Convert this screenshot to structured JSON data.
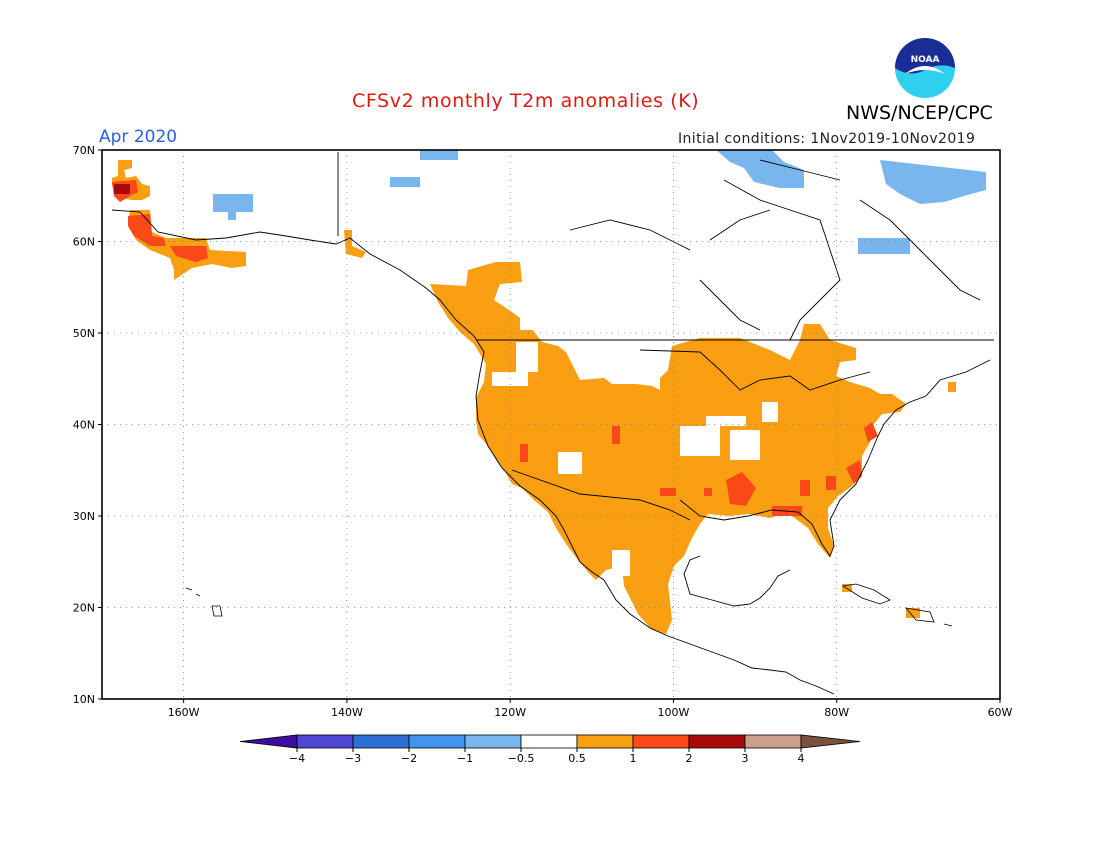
{
  "header": {
    "title": "CFSv2 monthly T2m anomalies (K)",
    "agency": "NWS/NCEP/CPC",
    "logo_text": "NOAA",
    "month": "Apr 2020",
    "initial_conditions": "Initial conditions: 1Nov2019-10Nov2019"
  },
  "axes": {
    "lat_labels": [
      "70N",
      "60N",
      "50N",
      "40N",
      "30N",
      "20N",
      "10N"
    ],
    "lon_labels": [
      "160W",
      "140W",
      "120W",
      "100W",
      "80W",
      "60W"
    ],
    "lat_values": [
      70,
      60,
      50,
      40,
      30,
      20,
      10
    ],
    "lon_values": [
      -160,
      -140,
      -120,
      -100,
      -80,
      -60
    ],
    "lat_range": [
      10,
      70
    ],
    "lon_range": [
      -170,
      -60
    ],
    "grid": "dotted"
  },
  "colorbar": {
    "labels": [
      "-4",
      "-3",
      "-2",
      "-1",
      "-0.5",
      "0.5",
      "1",
      "2",
      "3",
      "4"
    ],
    "colors": [
      "#3d0da0",
      "#4f47d3",
      "#2e6fd6",
      "#4096ef",
      "#7ab6ee",
      "#ffffff",
      "#fa9e12",
      "#fb4818",
      "#a80a0c",
      "#c9a08a",
      "#7b503c"
    ]
  },
  "palette": {
    "orange": "#fa9e12",
    "red": "#fb4818",
    "darkred": "#a80a0c",
    "lightblue": "#7ab6ee",
    "coast": "#000000",
    "noaa_blue": "#1a2d96",
    "noaa_cyan": "#2ed0ee"
  }
}
